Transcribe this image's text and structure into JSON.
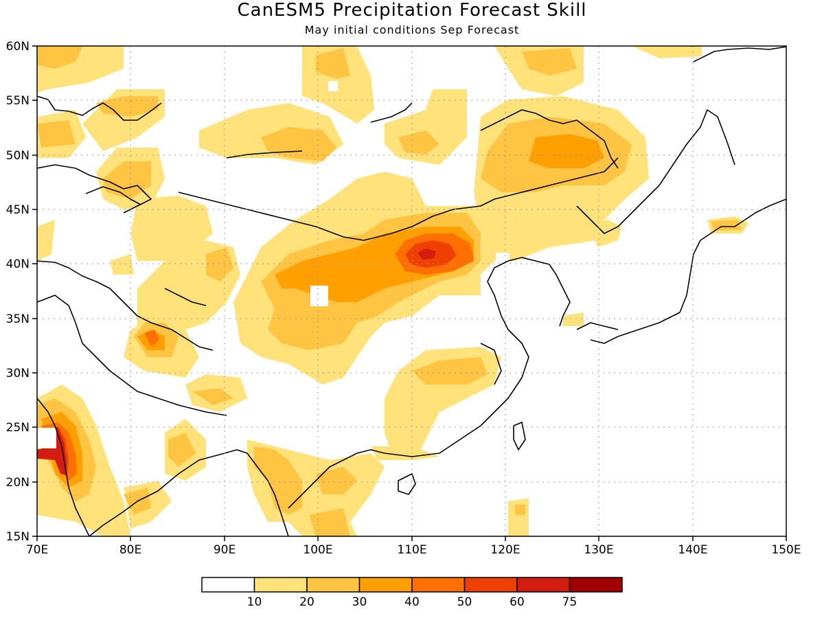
{
  "title": "CanESM5 Precipitation Forecast Skill",
  "subtitle": "May initial conditions  Sep Forecast",
  "map": {
    "lon_range": [
      70,
      150
    ],
    "lat_range": [
      15,
      60
    ],
    "lon_ticks": [
      "70E",
      "80E",
      "90E",
      "100E",
      "110E",
      "120E",
      "130E",
      "140E",
      "150E"
    ],
    "lat_ticks": [
      "15N",
      "20N",
      "25N",
      "30N",
      "35N",
      "40N",
      "45N",
      "50N",
      "55N",
      "60N"
    ],
    "grid": "dotted"
  },
  "colorbar": {
    "levels": [
      "10",
      "20",
      "30",
      "40",
      "50",
      "60",
      "75"
    ],
    "colors": [
      "#ffffff",
      "#ffe37a",
      "#ffc441",
      "#ffa000",
      "#ff7000",
      "#f04000",
      "#d31d10",
      "#a00000"
    ]
  }
}
